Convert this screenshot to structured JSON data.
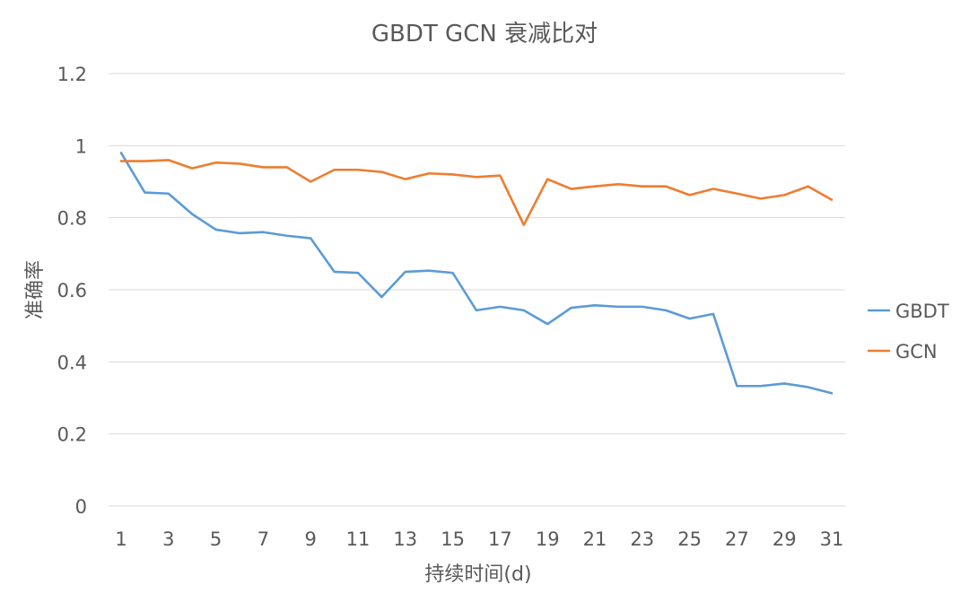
{
  "chart_data": {
    "type": "line",
    "title": "GBDT GCN 衰减比对",
    "xlabel": "持续时间(d)",
    "ylabel": "准确率",
    "x": [
      1,
      2,
      3,
      4,
      5,
      6,
      7,
      8,
      9,
      10,
      11,
      12,
      13,
      14,
      15,
      16,
      17,
      18,
      19,
      20,
      21,
      22,
      23,
      24,
      25,
      26,
      27,
      28,
      29,
      30,
      31
    ],
    "x_tick_labels": [
      "1",
      "3",
      "5",
      "7",
      "9",
      "11",
      "13",
      "15",
      "17",
      "19",
      "21",
      "23",
      "25",
      "27",
      "29",
      "31"
    ],
    "y_tick_labels": [
      "0",
      "0.2",
      "0.4",
      "0.6",
      "0.8",
      "1",
      "1.2"
    ],
    "ylim": [
      0,
      1.2
    ],
    "y_ticks": [
      0,
      0.2,
      0.4,
      0.6,
      0.8,
      1.0,
      1.2
    ],
    "grid": true,
    "legend_position": "right",
    "series": [
      {
        "name": "GBDT",
        "color": "#5b9bd5",
        "values": [
          0.98,
          0.87,
          0.867,
          0.81,
          0.767,
          0.757,
          0.76,
          0.75,
          0.743,
          0.65,
          0.647,
          0.58,
          0.65,
          0.653,
          0.647,
          0.543,
          0.553,
          0.543,
          0.505,
          0.55,
          0.557,
          0.553,
          0.553,
          0.543,
          0.52,
          0.533,
          0.333,
          0.333,
          0.34,
          0.33,
          0.313
        ]
      },
      {
        "name": "GCN",
        "color": "#ed7d31",
        "values": [
          0.957,
          0.957,
          0.96,
          0.937,
          0.953,
          0.95,
          0.94,
          0.94,
          0.9,
          0.933,
          0.933,
          0.927,
          0.907,
          0.923,
          0.92,
          0.913,
          0.917,
          0.78,
          0.907,
          0.88,
          0.887,
          0.893,
          0.887,
          0.887,
          0.863,
          0.88,
          0.867,
          0.853,
          0.863,
          0.887,
          0.85
        ]
      }
    ]
  }
}
